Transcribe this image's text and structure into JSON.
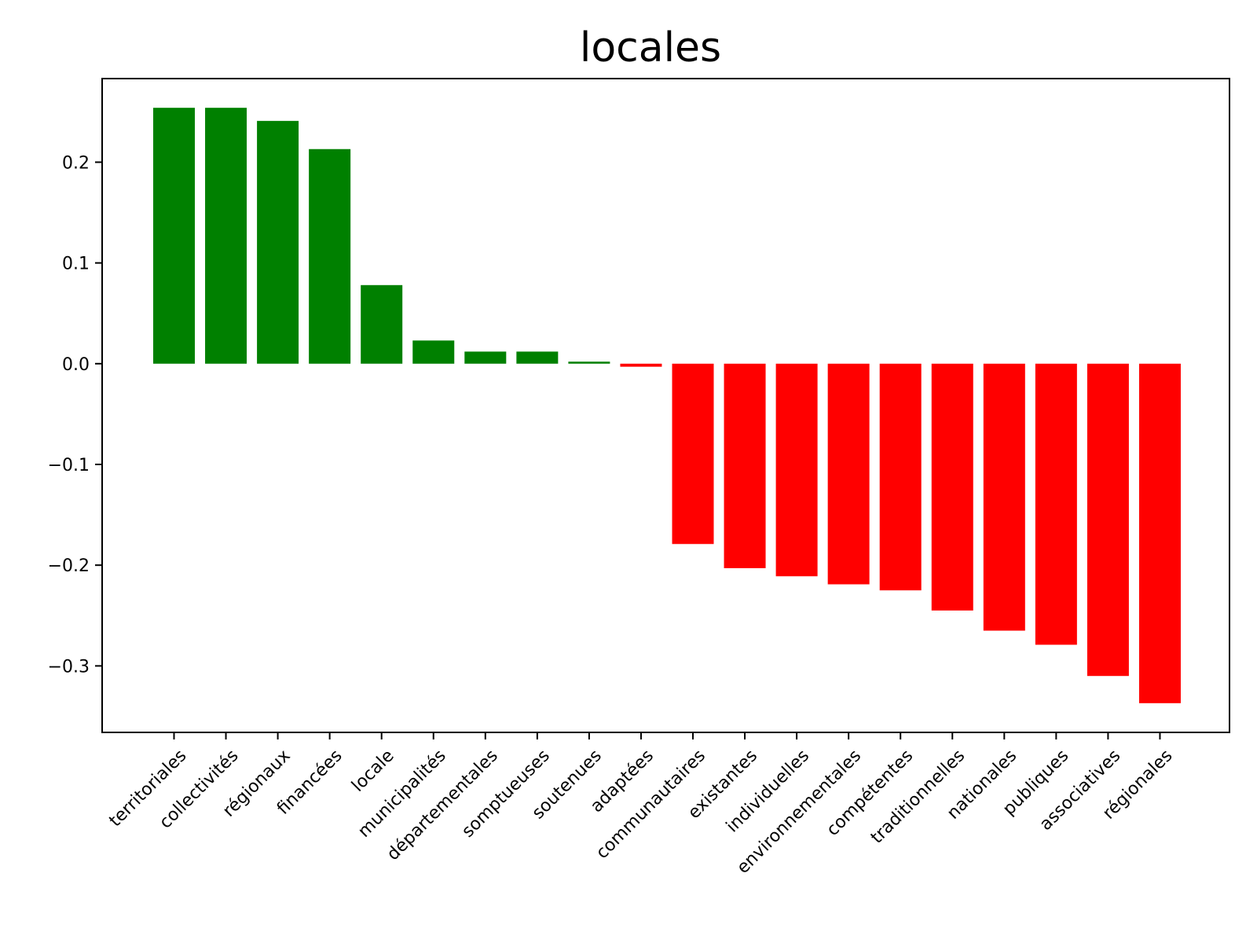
{
  "chart_data": {
    "type": "bar",
    "title": "locales",
    "xlabel": "",
    "ylabel": "",
    "categories": [
      "territoriales",
      "collectivités",
      "régionaux",
      "financées",
      "locale",
      "municipalités",
      "départementales",
      "somptueuses",
      "soutenues",
      "adaptées",
      "communautaires",
      "existantes",
      "individuelles",
      "environnementales",
      "compétentes",
      "traditionnelles",
      "nationales",
      "publiques",
      "associatives",
      "régionales"
    ],
    "values": [
      0.254,
      0.254,
      0.241,
      0.213,
      0.078,
      0.023,
      0.012,
      0.012,
      0.002,
      -0.003,
      -0.179,
      -0.203,
      -0.211,
      -0.219,
      -0.225,
      -0.245,
      -0.265,
      -0.279,
      -0.31,
      -0.337
    ],
    "positive_color": "#008000",
    "negative_color": "#ff0000",
    "ylim": [
      -0.366,
      0.283
    ],
    "yticks": [
      0.2,
      0.1,
      0.0,
      -0.1,
      -0.2,
      -0.3
    ],
    "ytick_labels": [
      "0.2",
      "0.1",
      "0.0",
      "−0.1",
      "−0.2",
      "−0.3"
    ],
    "grid": false,
    "xtick_rotation": -45
  }
}
